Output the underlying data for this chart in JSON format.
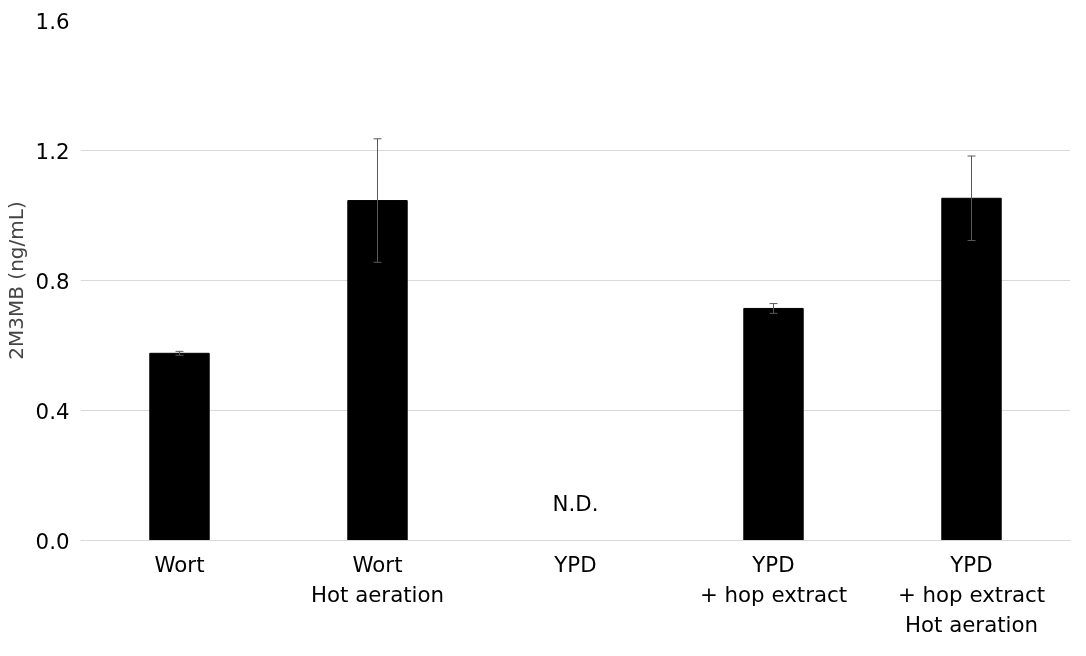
{
  "chart_data": {
    "type": "bar",
    "ylabel": "2M3MB (ng/mL)",
    "categories": [
      "Wort",
      "Wort\nHot aeration",
      "YPD",
      "YPD\n+ hop extract",
      "YPD\n+ hop extract\nHot aeration"
    ],
    "values": [
      0.576,
      1.046,
      0,
      0.714,
      1.053
    ],
    "errors": [
      0.006,
      0.19,
      null,
      0.015,
      0.13
    ],
    "color": "#000000",
    "ylim": [
      0,
      1.6
    ],
    "yticks": [
      {
        "value": 0,
        "label": "0.0"
      },
      {
        "value": 0.4,
        "label": "0.4"
      },
      {
        "value": 0.8,
        "label": "0.8"
      },
      {
        "value": 1.2,
        "label": "1.2"
      },
      {
        "value": 1.6,
        "label": "1.6"
      }
    ],
    "grid": "y",
    "annotations": [
      {
        "text": "N.D.",
        "x": "YPD",
        "y": 0
      }
    ]
  }
}
